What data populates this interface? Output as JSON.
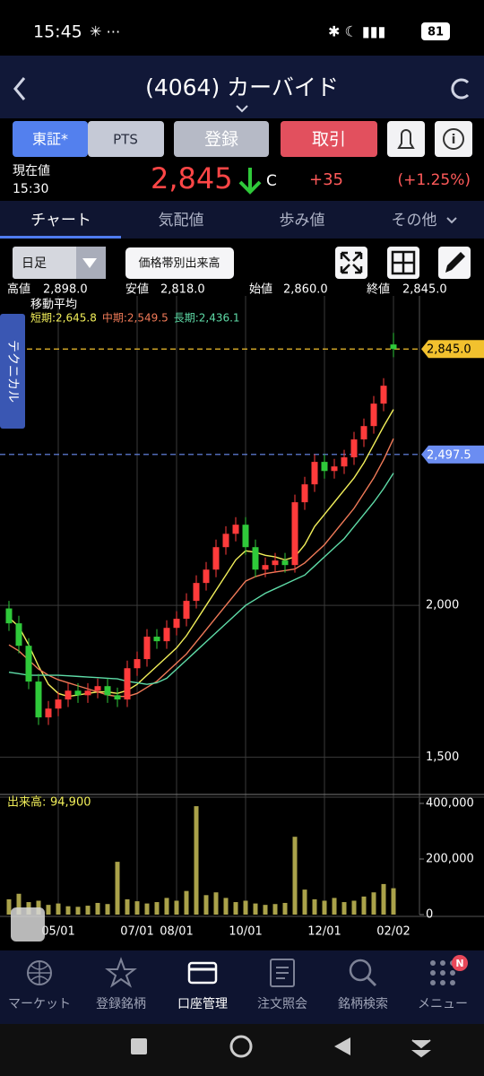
{
  "status_bar": {
    "time": "15:45",
    "battery": "81"
  },
  "header": {
    "title": "(4064) カーバイド"
  },
  "buttons": [
    "東証*",
    "PTS",
    "登録",
    "取引"
  ],
  "quote": {
    "label": "現在値",
    "time": "15:30",
    "price": "2,845",
    "flag": "C",
    "change": "+35",
    "change_pct": "(+1.25%)"
  },
  "tabs": [
    "チャート",
    "気配値",
    "歩み値",
    "その他"
  ],
  "toolbar": {
    "period": "日足",
    "volume_profile": "価格帯別出来高"
  },
  "ohlc": [
    {
      "label": "高値",
      "value": "2,898.0"
    },
    {
      "label": "安値",
      "value": "2,818.0"
    },
    {
      "label": "始値",
      "value": "2,860.0"
    },
    {
      "label": "終値",
      "value": "2,845.0"
    }
  ],
  "side_tab": "テクニカル",
  "chart_data": {
    "type": "candlestick",
    "categories": [
      null,
      null,
      null,
      null,
      null,
      "05/01",
      null,
      null,
      null,
      null,
      null,
      null,
      null,
      "07/01",
      null,
      null,
      null,
      "08/01",
      null,
      null,
      null,
      null,
      null,
      null,
      "10/01",
      null,
      null,
      null,
      null,
      null,
      null,
      null,
      "12/01",
      null,
      null,
      null,
      null,
      null,
      null,
      "02/02"
    ],
    "open": [
      1990,
      1941,
      1867,
      1749,
      1631,
      1660,
      1690,
      1719,
      1704,
      1719,
      1734,
      1704,
      1690,
      1793,
      1823,
      1897,
      1882,
      1926,
      1956,
      2015,
      2074,
      2118,
      2192,
      2236,
      2266,
      2192,
      2118,
      2133,
      2148,
      2133,
      2340,
      2399,
      2473,
      2443,
      2458,
      2488,
      2547,
      2591,
      2665,
      2860
    ],
    "high": [
      2015,
      1966,
      1892,
      1774,
      1685,
      1715,
      1744,
      1744,
      1744,
      1759,
      1759,
      1729,
      1818,
      1848,
      1922,
      1922,
      1951,
      1981,
      2040,
      2099,
      2143,
      2217,
      2261,
      2291,
      2291,
      2217,
      2158,
      2173,
      2173,
      2365,
      2424,
      2498,
      2498,
      2483,
      2513,
      2572,
      2616,
      2690,
      2749,
      2898
    ],
    "low": [
      1916,
      1842,
      1724,
      1606,
      1606,
      1635,
      1665,
      1679,
      1679,
      1694,
      1679,
      1665,
      1665,
      1768,
      1798,
      1857,
      1857,
      1901,
      1931,
      1990,
      2049,
      2093,
      2167,
      2211,
      2167,
      2093,
      2093,
      2108,
      2108,
      2108,
      2315,
      2374,
      2418,
      2418,
      2433,
      2463,
      2522,
      2566,
      2640,
      2818
    ],
    "close": [
      1941,
      1867,
      1749,
      1631,
      1660,
      1690,
      1719,
      1704,
      1719,
      1734,
      1704,
      1690,
      1793,
      1823,
      1897,
      1882,
      1926,
      1956,
      2015,
      2074,
      2118,
      2192,
      2236,
      2266,
      2192,
      2118,
      2133,
      2148,
      2133,
      2340,
      2399,
      2473,
      2443,
      2458,
      2488,
      2547,
      2591,
      2665,
      2724,
      2845
    ],
    "up_color": "#ff3b3b",
    "down_color": "#2fc93a",
    "ylim": [
      1380,
      3020
    ],
    "yticks": [
      {
        "value": 1500,
        "label": "1,500"
      },
      {
        "value": 2000,
        "label": "2,000"
      }
    ],
    "moving_average": {
      "title": "移動平均",
      "series": [
        {
          "name": "短期:",
          "color": "#f2ef5a",
          "current_label": "2,645.8",
          "values": [
            1960,
            1930,
            1870,
            1800,
            1740,
            1710,
            1700,
            1705,
            1710,
            1715,
            1715,
            1710,
            1720,
            1740,
            1770,
            1800,
            1830,
            1860,
            1900,
            1950,
            2000,
            2050,
            2100,
            2150,
            2180,
            2175,
            2165,
            2160,
            2150,
            2160,
            2200,
            2260,
            2300,
            2340,
            2380,
            2420,
            2470,
            2530,
            2590,
            2645.8
          ]
        },
        {
          "name": "中期:",
          "color": "#f07a58",
          "current_label": "2,549.5",
          "values": [
            1870,
            1850,
            1820,
            1790,
            1770,
            1755,
            1745,
            1735,
            1725,
            1715,
            1705,
            1700,
            1700,
            1710,
            1730,
            1750,
            1780,
            1810,
            1840,
            1880,
            1920,
            1960,
            2000,
            2040,
            2080,
            2095,
            2105,
            2110,
            2115,
            2120,
            2140,
            2170,
            2200,
            2240,
            2280,
            2320,
            2370,
            2420,
            2480,
            2549.5
          ]
        },
        {
          "name": "長期:",
          "color": "#5fdca8",
          "current_label": "2,436.1",
          "values": [
            1780,
            1775,
            1770,
            1770,
            1770,
            1770,
            1768,
            1766,
            1764,
            1762,
            1760,
            1758,
            1750,
            1745,
            1740,
            1745,
            1760,
            1790,
            1820,
            1850,
            1880,
            1910,
            1940,
            1970,
            2000,
            2020,
            2040,
            2055,
            2070,
            2085,
            2100,
            2130,
            2160,
            2190,
            2220,
            2260,
            2300,
            2340,
            2385,
            2436.1
          ]
        }
      ]
    },
    "annotations": [
      {
        "value": 2845,
        "label": "2,845.0",
        "color": "#f2c12e",
        "text_color": "#000000"
      },
      {
        "value": 2497.5,
        "label": "2,497.5",
        "color": "#6b8df2",
        "text_color": "#ffffff"
      }
    ],
    "volume": {
      "label": "出来高:",
      "current_label": "94,900",
      "color": "#aaa24a",
      "ylim": [
        0,
        400000
      ],
      "yticks": [
        0,
        {
          "value": 200000,
          "label": "200,000"
        },
        {
          "value": 400000,
          "label": "400,000"
        }
      ],
      "values": [
        55000,
        75000,
        45000,
        50000,
        35000,
        40000,
        30000,
        28000,
        32000,
        42000,
        38000,
        190000,
        55000,
        48000,
        40000,
        45000,
        60000,
        50000,
        85000,
        390000,
        70000,
        80000,
        60000,
        45000,
        50000,
        40000,
        35000,
        38000,
        42000,
        280000,
        90000,
        55000,
        50000,
        60000,
        45000,
        50000,
        65000,
        80000,
        110000,
        94900
      ]
    }
  },
  "nav": [
    "マーケット",
    "登録銘柄",
    "口座管理",
    "注文照会",
    "銘柄検索",
    "メニュー"
  ],
  "badge": "N"
}
